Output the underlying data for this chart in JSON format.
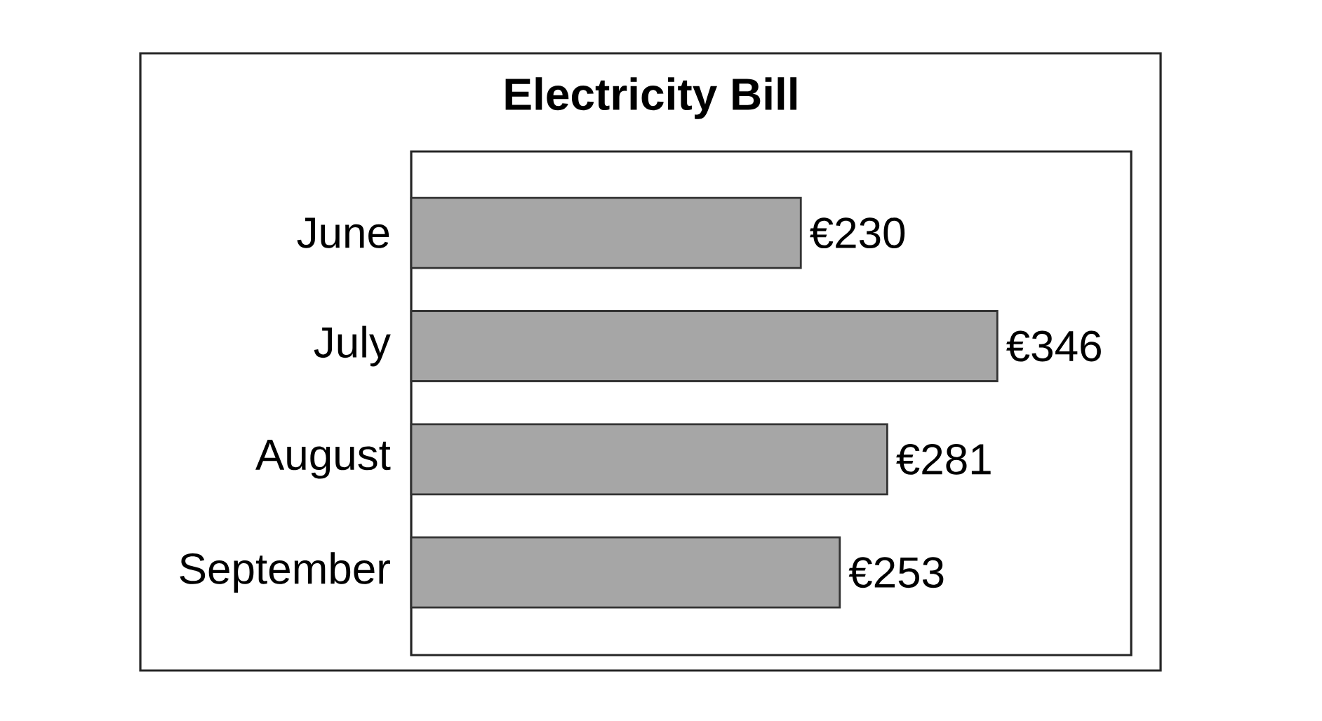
{
  "chart_data": {
    "type": "bar",
    "orientation": "horizontal",
    "title": "Electricity Bill",
    "categories": [
      "June",
      "July",
      "August",
      "September"
    ],
    "values": [
      230,
      346,
      281,
      253
    ],
    "value_labels": [
      "€230",
      "€346",
      "€281",
      "€253"
    ],
    "color": "#a6a6a6",
    "xlim": [
      0,
      425
    ],
    "tick_labels": "y"
  }
}
